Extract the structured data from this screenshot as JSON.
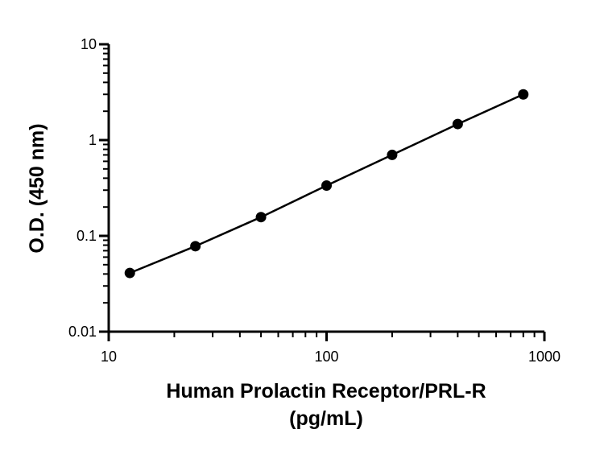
{
  "chart_data": {
    "type": "scatter",
    "title": "",
    "xlabel": "Human Prolactin Receptor/PRL-R",
    "xlabel_line2": "(pg/mL)",
    "ylabel": "O.D. (450 nm)",
    "x_scale": "log",
    "y_scale": "log",
    "xlim": [
      10,
      1000
    ],
    "ylim": [
      0.01,
      10
    ],
    "x_ticks": [
      10,
      100,
      1000
    ],
    "x_tick_labels": [
      "10",
      "100",
      "1000"
    ],
    "y_ticks": [
      0.01,
      0.1,
      1,
      10
    ],
    "y_tick_labels": [
      "0.01",
      "0.1",
      "1",
      "10"
    ],
    "grid": false,
    "legend": "none",
    "series": [
      {
        "x": [
          12.5,
          25,
          50,
          100,
          200,
          400,
          800
        ],
        "y": [
          0.041,
          0.078,
          0.157,
          0.335,
          0.7,
          1.47,
          3.0
        ],
        "markers": true,
        "fit_line": true,
        "color": "#000000"
      }
    ]
  }
}
